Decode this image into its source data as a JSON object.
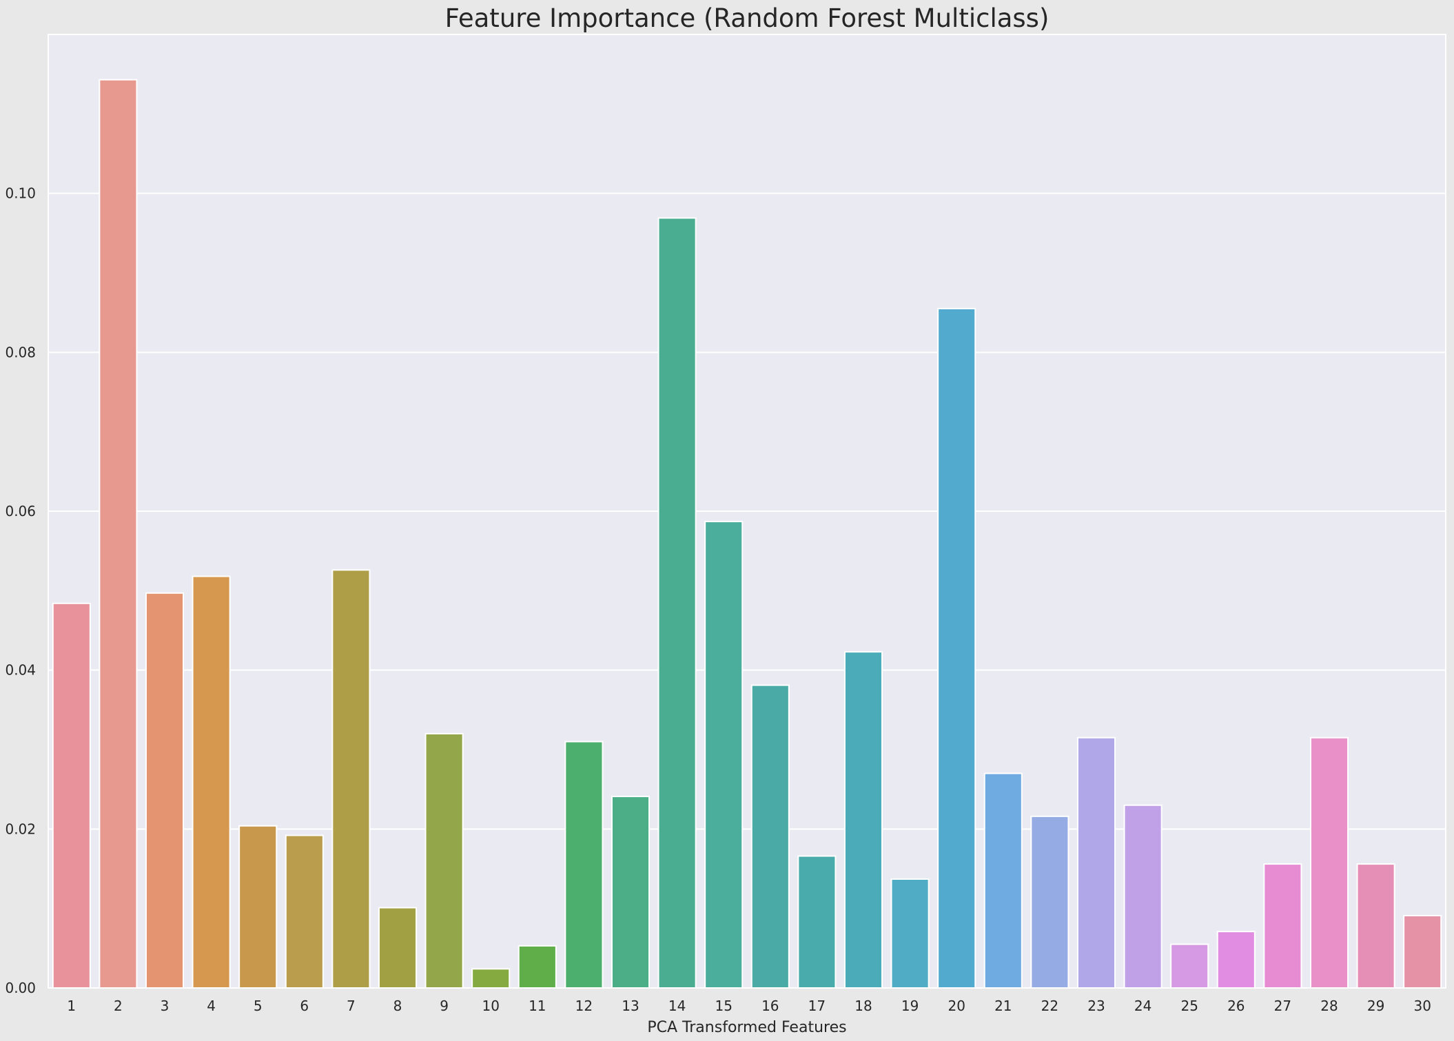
{
  "chart_data": {
    "type": "bar",
    "title": "Feature Importance (Random Forest Multiclass)",
    "xlabel": "PCA Transformed Features",
    "ylabel": "",
    "categories": [
      "1",
      "2",
      "3",
      "4",
      "5",
      "6",
      "7",
      "8",
      "9",
      "10",
      "11",
      "12",
      "13",
      "14",
      "15",
      "16",
      "17",
      "18",
      "19",
      "20",
      "21",
      "22",
      "23",
      "24",
      "25",
      "26",
      "27",
      "28",
      "29",
      "30"
    ],
    "values": [
      0.0484,
      0.1143,
      0.0497,
      0.0518,
      0.0204,
      0.0192,
      0.0526,
      0.0101,
      0.032,
      0.0024,
      0.0053,
      0.031,
      0.0241,
      0.0969,
      0.0587,
      0.0381,
      0.0166,
      0.0423,
      0.0137,
      0.0855,
      0.027,
      0.0216,
      0.0315,
      0.023,
      0.0055,
      0.0071,
      0.0156,
      0.0315,
      0.0156,
      0.0091
    ],
    "yticks": [
      "0.00",
      "0.02",
      "0.04",
      "0.06",
      "0.08",
      "0.10"
    ],
    "ylim": [
      0,
      0.12
    ],
    "grid": true,
    "legend": "none",
    "colors": [
      "#e8939c",
      "#e8998f",
      "#e49470",
      "#d6974f",
      "#c8984c",
      "#bb9d4e",
      "#ae9e48",
      "#a1a144",
      "#93a649",
      "#84aa40",
      "#5fae4a",
      "#4caf6d",
      "#4bae86",
      "#4aad92",
      "#4bae9d",
      "#4aaba6",
      "#4aabac",
      "#4cabb8",
      "#4facc4",
      "#52aacf",
      "#6fabe0",
      "#94abe3",
      "#b0a7e8",
      "#c0a1e7",
      "#d69ae4",
      "#e08de2",
      "#e78bd3",
      "#e990c8",
      "#e68fb6",
      "#e592a7"
    ]
  }
}
